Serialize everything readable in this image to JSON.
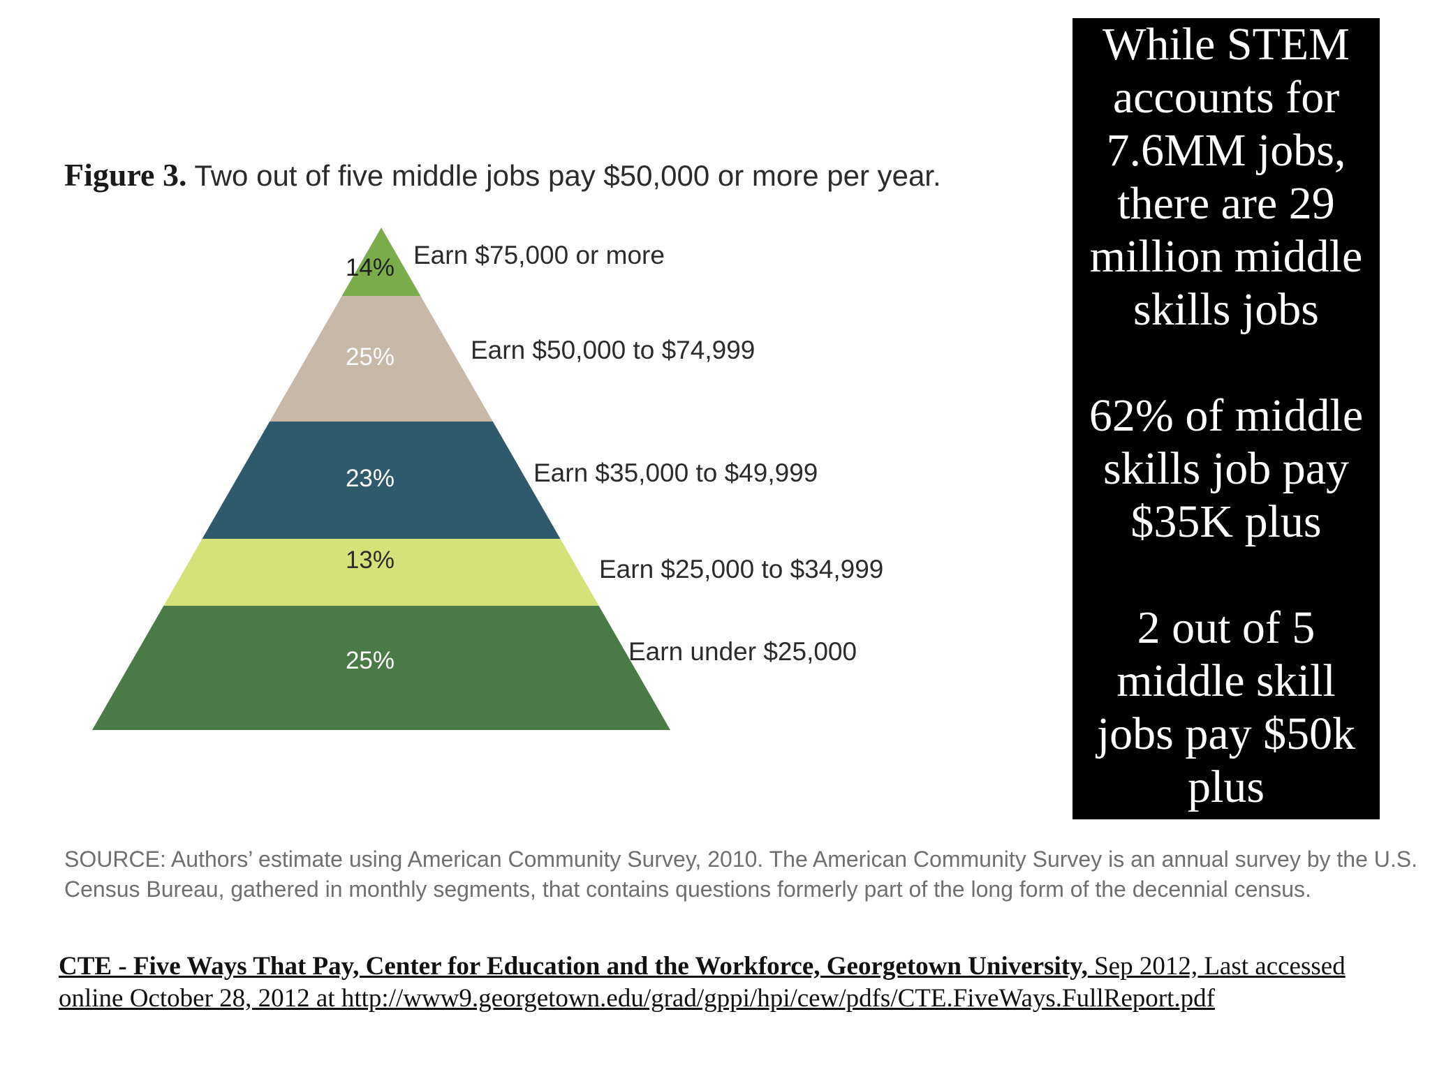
{
  "figure": {
    "label": "Figure 3.",
    "title": "Two out of five middle jobs pay $50,000 or more per year."
  },
  "chart_data": {
    "type": "pyramid",
    "title": "Figure 3. Two out of five middle jobs pay $50,000 or more per year.",
    "order": "top-to-bottom",
    "tiers": [
      {
        "value_label": "14%",
        "value": 14,
        "label": "Earn $75,000 or more",
        "color": "#7aac4c",
        "text_color": "#1f1f1f"
      },
      {
        "value_label": "25%",
        "value": 25,
        "label": "Earn $50,000 to $74,999",
        "color": "#c8b8a7",
        "text_color": "#ffffff"
      },
      {
        "value_label": "23%",
        "value": 23,
        "label": "Earn $35,000 to $49,999",
        "color": "#2e5a6b",
        "text_color": "#ffffff"
      },
      {
        "value_label": "13%",
        "value": 13,
        "label": "Earn $25,000 to $34,999",
        "color": "#d5e27a",
        "text_color": "#2b2b2b"
      },
      {
        "value_label": "25%",
        "value": 25,
        "label": "Earn under $25,000",
        "color": "#4a7a46",
        "text_color": "#ffffff"
      }
    ],
    "label_color": "#2b2b2b"
  },
  "callout": {
    "paragraphs": [
      [
        "While STEM",
        "accounts for",
        "7.6MM jobs,",
        "there are 29",
        "million middle",
        "skills jobs"
      ],
      [
        "62% of middle",
        "skills job pay",
        "$35K plus"
      ],
      [
        "2 out of 5",
        "middle skill",
        "jobs pay $50k",
        "plus"
      ]
    ]
  },
  "source": {
    "text": "SOURCE: Authors’ estimate using American Community Survey, 2010. The American Community Survey is an annual survey by the U.S. Census Bureau, gathered in monthly segments, that contains questions formerly part of the long form of the decennial census."
  },
  "citation": {
    "title": "CTE - Five Ways That Pay, Center for Education and the Workforce, Georgetown University,",
    "rest": " Sep 2012, Last accessed online October 28, 2012 at http://www9.georgetown.edu/grad/gppi/hpi/cew/pdfs/CTE.FiveWays.FullReport.pdf"
  }
}
